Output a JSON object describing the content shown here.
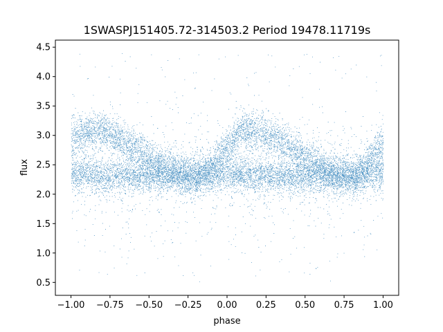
{
  "chart_data": {
    "type": "scatter",
    "title": "1SWASPJ151405.72-314503.2 Period 19478.11719s",
    "xlabel": "phase",
    "ylabel": "flux",
    "xlim": [
      -1.1,
      1.1
    ],
    "ylim": [
      0.28,
      4.62
    ],
    "xticks": [
      -1.0,
      -0.75,
      -0.5,
      -0.25,
      0.0,
      0.25,
      0.5,
      0.75,
      1.0
    ],
    "xtick_labels": [
      "−1.00",
      "−0.75",
      "−0.50",
      "−0.25",
      "0.00",
      "0.25",
      "0.50",
      "0.75",
      "1.00"
    ],
    "yticks": [
      0.5,
      1.0,
      1.5,
      2.0,
      2.5,
      3.0,
      3.5,
      4.0,
      4.5
    ],
    "ytick_labels": [
      "0.5",
      "1.0",
      "1.5",
      "2.0",
      "2.5",
      "3.0",
      "3.5",
      "4.0",
      "4.5"
    ],
    "grid": false,
    "legend": "none",
    "marker_color": "#1f77b4",
    "description_of_points": "dense phase-folded light curve, phase -1 to 1",
    "sample_points": {
      "x": [
        -1.0,
        -0.9,
        -0.8,
        -0.7,
        -0.6,
        -0.5,
        -0.4,
        -0.3,
        -0.2,
        -0.1,
        0.0,
        0.1,
        0.2,
        0.3,
        0.4,
        0.5,
        0.6,
        0.7,
        0.8,
        0.9,
        1.0
      ],
      "y_upper_branch": [
        2.95,
        3.05,
        3.1,
        2.95,
        2.8,
        2.6,
        2.45,
        2.35,
        2.3,
        2.45,
        2.8,
        3.1,
        3.05,
        2.95,
        2.8,
        2.6,
        2.5,
        2.35,
        2.3,
        2.5,
        2.9
      ],
      "y_lower_branch": [
        2.35,
        2.35,
        2.3,
        2.3,
        2.3,
        2.3,
        2.3,
        2.3,
        2.3,
        2.35,
        2.35,
        2.35,
        2.3,
        2.3,
        2.3,
        2.3,
        2.3,
        2.3,
        2.3,
        2.35,
        2.35
      ]
    }
  }
}
